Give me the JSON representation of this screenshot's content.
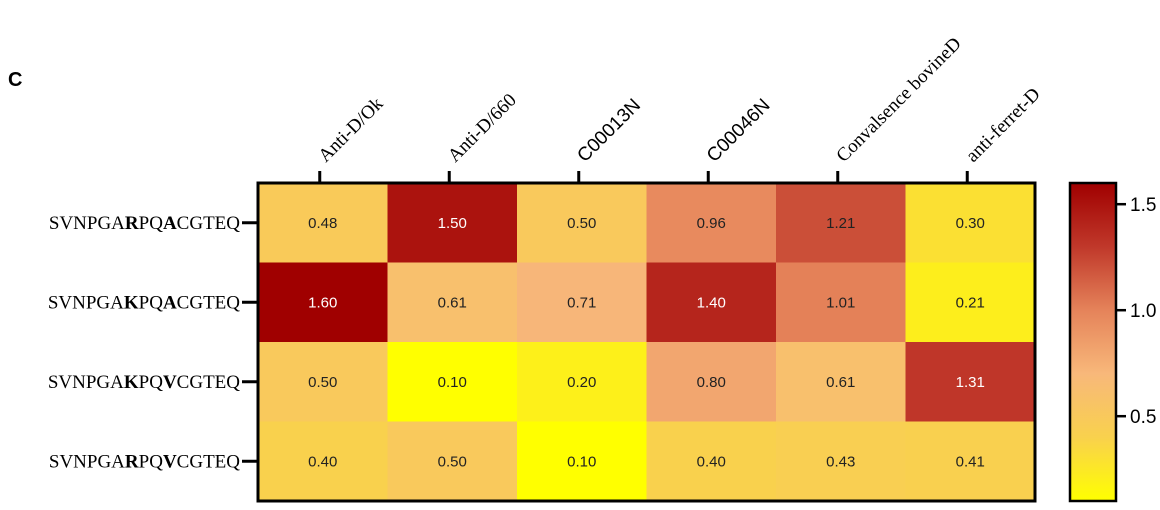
{
  "panel_label": "C",
  "chart_data": {
    "type": "heatmap",
    "columns": [
      {
        "label": "Anti-D/Ok",
        "style": "serif"
      },
      {
        "label": "Anti-D/660",
        "style": "serif"
      },
      {
        "label": "C00013N",
        "style": "sans"
      },
      {
        "label": "C00046N",
        "style": "sans"
      },
      {
        "label": "Convalsence bovineD",
        "style": "serif"
      },
      {
        "label": "anti-ferret-D",
        "style": "serif"
      }
    ],
    "rows": [
      {
        "label": "SVNPGARPQACGTEQ",
        "segments": [
          {
            "t": "SVNPGA",
            "b": false
          },
          {
            "t": "R",
            "b": true
          },
          {
            "t": "PQ",
            "b": false
          },
          {
            "t": "A",
            "b": true
          },
          {
            "t": "CGTEQ",
            "b": false
          }
        ]
      },
      {
        "label": "SVNPGAKPQACGTEQ",
        "segments": [
          {
            "t": "SVNPGA",
            "b": false
          },
          {
            "t": "K",
            "b": true
          },
          {
            "t": "PQ",
            "b": false
          },
          {
            "t": "A",
            "b": true
          },
          {
            "t": "CGTEQ",
            "b": false
          }
        ]
      },
      {
        "label": "SVNPGAKPQVCGTEQ",
        "segments": [
          {
            "t": "SVNPGA",
            "b": false
          },
          {
            "t": "K",
            "b": true
          },
          {
            "t": "PQ",
            "b": false
          },
          {
            "t": "V",
            "b": true
          },
          {
            "t": "CGTEQ",
            "b": false
          }
        ]
      },
      {
        "label": "SVNPGARPQVCGTEQ",
        "segments": [
          {
            "t": "SVNPGA",
            "b": false
          },
          {
            "t": "R",
            "b": true
          },
          {
            "t": "PQ",
            "b": false
          },
          {
            "t": "V",
            "b": true
          },
          {
            "t": "CGTEQ",
            "b": false
          }
        ]
      }
    ],
    "values": [
      [
        0.48,
        1.5,
        0.5,
        0.96,
        1.21,
        0.3
      ],
      [
        1.6,
        0.61,
        0.71,
        1.4,
        1.01,
        0.21
      ],
      [
        0.5,
        0.1,
        0.2,
        0.8,
        0.61,
        1.31
      ],
      [
        0.4,
        0.5,
        0.1,
        0.4,
        0.43,
        0.41
      ]
    ],
    "value_labels": [
      [
        "0.48",
        "1.50",
        "0.50",
        "0.96",
        "1.21",
        "0.30"
      ],
      [
        "1.60",
        "0.61",
        "0.71",
        "1.40",
        "1.01",
        "0.21"
      ],
      [
        "0.50",
        "0.10",
        "0.20",
        "0.80",
        "0.61",
        "1.31"
      ],
      [
        "0.40",
        "0.50",
        "0.10",
        "0.40",
        "0.43",
        "0.41"
      ]
    ],
    "colorbar": {
      "range": [
        0.1,
        1.6
      ],
      "ticks": [
        0.5,
        1.0,
        1.5
      ],
      "tick_labels": [
        "0.5",
        "1.0",
        "1.5"
      ],
      "colormap": [
        "#ffff00",
        "#f9d14d",
        "#f8b87a",
        "#e5835a",
        "#c0382a",
        "#a00000"
      ]
    }
  }
}
